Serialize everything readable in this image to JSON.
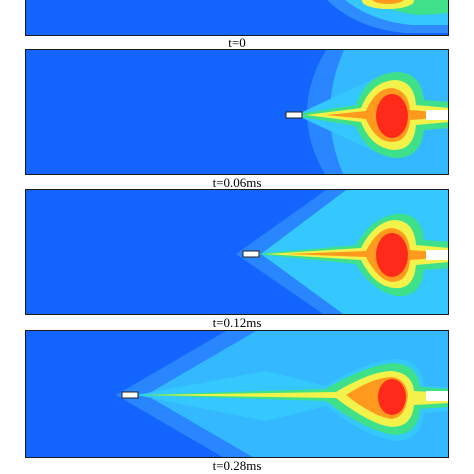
{
  "figure": {
    "frames": [
      {
        "label": "t=0"
      },
      {
        "label": "t=0.06ms"
      },
      {
        "label": "t=0.12ms"
      },
      {
        "label": "t=0.28ms"
      }
    ],
    "colors": {
      "background": "#1464ff",
      "cyan": "#34c8ff",
      "green": "#3ee08a",
      "yellow": "#f2f24a",
      "orange": "#ff9a1e",
      "red": "#ff2a1a"
    }
  }
}
